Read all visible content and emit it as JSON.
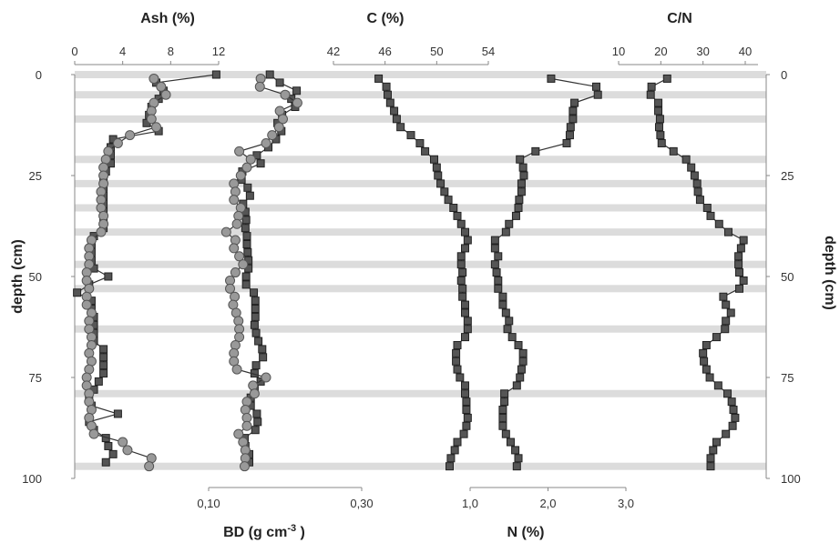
{
  "chart_data": {
    "type": "scatter",
    "depth_axis": {
      "label": "depth (cm)",
      "range": [
        0,
        100
      ],
      "ticks": [
        "0",
        "25",
        "50",
        "75",
        "100"
      ],
      "inverted": true,
      "band_depths": [
        0,
        5,
        11,
        21,
        27,
        33,
        39,
        47,
        53,
        63,
        79,
        97
      ]
    },
    "axes": [
      {
        "id": "ash",
        "title": "Ash  (%)",
        "position": "top",
        "ticks": [
          "0",
          "4",
          "8",
          "12"
        ],
        "range": [
          0,
          12
        ]
      },
      {
        "id": "bd",
        "title": "BD (g cm",
        "title_sup": "-3",
        "title_end": " )",
        "position": "bottom",
        "ticks": [
          "0,10",
          "0,30"
        ],
        "range": [
          0.1,
          0.3
        ]
      },
      {
        "id": "c",
        "title": "C  (%)",
        "position": "top",
        "ticks": [
          "42",
          "46",
          "50",
          "54"
        ],
        "range": [
          42,
          54
        ]
      },
      {
        "id": "n",
        "title": "N  (%)",
        "position": "bottom",
        "ticks": [
          "1,0",
          "2,0",
          "3,0"
        ],
        "range": [
          1.0,
          3.0
        ]
      },
      {
        "id": "cn",
        "title": "C/N",
        "position": "top",
        "ticks": [
          "10",
          "20",
          "30",
          "40"
        ],
        "range": [
          10,
          40
        ]
      }
    ],
    "series": [
      {
        "axis": "ash",
        "marker": "square",
        "color": "#555555",
        "depth": [
          0,
          2,
          4,
          6,
          8,
          10,
          12,
          14,
          16,
          18,
          20,
          22,
          24,
          26,
          28,
          30,
          32,
          34,
          36,
          38,
          40,
          42,
          44,
          46,
          48,
          50,
          52,
          54,
          56,
          58,
          60,
          62,
          64,
          66,
          68,
          70,
          72,
          74,
          76,
          78,
          80,
          82,
          84,
          86,
          88,
          90,
          92,
          94,
          96
        ],
        "values": [
          11.8,
          6.8,
          7.4,
          7.0,
          6.4,
          6.2,
          6.0,
          7.0,
          3.2,
          3.0,
          3.0,
          3.0,
          2.6,
          2.4,
          2.4,
          2.4,
          2.4,
          2.4,
          2.4,
          2.4,
          1.6,
          1.4,
          1.4,
          1.4,
          1.6,
          2.8,
          1.2,
          0.2,
          1.4,
          1.4,
          1.6,
          1.6,
          1.6,
          1.6,
          2.4,
          2.4,
          2.4,
          2.4,
          2.0,
          1.6,
          1.2,
          1.4,
          3.6,
          1.2,
          1.6,
          2.6,
          2.8,
          3.2,
          2.6
        ]
      },
      {
        "axis": "ash",
        "marker": "circle",
        "color": "#999999",
        "depth": [
          1,
          3,
          5,
          7,
          9,
          11,
          13,
          15,
          17,
          19,
          21,
          23,
          25,
          27,
          29,
          31,
          33,
          35,
          37,
          39,
          41,
          43,
          45,
          47,
          49,
          51,
          53,
          55,
          57,
          59,
          61,
          63,
          65,
          67,
          69,
          71,
          73,
          75,
          77,
          79,
          81,
          83,
          85,
          87,
          89,
          91,
          93,
          95,
          97
        ],
        "values": [
          6.6,
          7.2,
          7.6,
          6.6,
          6.4,
          6.4,
          6.8,
          4.6,
          3.6,
          2.8,
          2.6,
          2.4,
          2.4,
          2.4,
          2.2,
          2.2,
          2.2,
          2.4,
          2.4,
          2.2,
          1.4,
          1.2,
          1.2,
          1.2,
          1.0,
          1.0,
          1.2,
          1.0,
          1.0,
          1.4,
          1.2,
          1.2,
          1.4,
          1.4,
          1.2,
          1.4,
          1.2,
          1.0,
          1.0,
          1.2,
          1.2,
          1.4,
          1.2,
          1.4,
          1.6,
          4.0,
          4.4,
          6.4,
          6.2
        ]
      },
      {
        "axis": "bd",
        "marker": "square",
        "color": "#555555",
        "depth": [
          0,
          2,
          4,
          6,
          8,
          10,
          12,
          14,
          16,
          18,
          20,
          22,
          24,
          26,
          28,
          30,
          32,
          34,
          36,
          38,
          40,
          42,
          44,
          46,
          48,
          50,
          52,
          54,
          56,
          58,
          60,
          62,
          64,
          66,
          68,
          70,
          72,
          74,
          76,
          78,
          80,
          82,
          84,
          86,
          88,
          90,
          92,
          94,
          96
        ],
        "values": [
          0.18,
          0.193,
          0.215,
          0.208,
          0.213,
          0.196,
          0.19,
          0.195,
          0.188,
          0.178,
          0.163,
          0.168,
          0.144,
          0.143,
          0.151,
          0.154,
          0.145,
          0.148,
          0.149,
          0.148,
          0.15,
          0.15,
          0.151,
          0.152,
          0.152,
          0.149,
          0.149,
          0.159,
          0.161,
          0.161,
          0.161,
          0.16,
          0.162,
          0.165,
          0.17,
          0.171,
          0.162,
          0.16,
          0.168,
          0.16,
          0.155,
          0.155,
          0.163,
          0.164,
          0.161,
          0.147,
          0.148,
          0.153,
          0.153
        ]
      },
      {
        "axis": "bd",
        "marker": "circle",
        "color": "#999999",
        "depth": [
          1,
          3,
          5,
          7,
          9,
          11,
          13,
          15,
          17,
          19,
          21,
          23,
          25,
          27,
          29,
          31,
          33,
          35,
          37,
          39,
          41,
          43,
          45,
          47,
          49,
          51,
          53,
          55,
          57,
          59,
          61,
          63,
          65,
          67,
          69,
          71,
          73,
          75,
          77,
          79,
          81,
          83,
          85,
          87,
          89,
          91,
          93,
          95,
          97
        ],
        "values": [
          0.168,
          0.167,
          0.2,
          0.216,
          0.193,
          0.197,
          0.192,
          0.183,
          0.175,
          0.14,
          0.155,
          0.15,
          0.142,
          0.133,
          0.135,
          0.133,
          0.142,
          0.139,
          0.137,
          0.123,
          0.135,
          0.133,
          0.14,
          0.145,
          0.135,
          0.128,
          0.128,
          0.134,
          0.132,
          0.136,
          0.139,
          0.14,
          0.14,
          0.135,
          0.133,
          0.133,
          0.137,
          0.175,
          0.158,
          0.16,
          0.15,
          0.148,
          0.15,
          0.15,
          0.139,
          0.145,
          0.148,
          0.148,
          0.147
        ]
      },
      {
        "axis": "c",
        "marker": "square",
        "color": "#555555",
        "depth": [
          1,
          3,
          5,
          7,
          9,
          11,
          13,
          15,
          17,
          19,
          21,
          23,
          25,
          27,
          29,
          31,
          33,
          35,
          37,
          39,
          41,
          43,
          45,
          47,
          49,
          51,
          53,
          55,
          57,
          59,
          61,
          63,
          65,
          67,
          69,
          71,
          73,
          75,
          77,
          79,
          81,
          83,
          85,
          87,
          89,
          91,
          93,
          95,
          97
        ],
        "values": [
          45.5,
          46.1,
          46.2,
          46.4,
          46.7,
          46.9,
          47.2,
          48.0,
          48.7,
          49.1,
          49.8,
          50.0,
          50.1,
          50.3,
          50.6,
          50.9,
          51.3,
          51.6,
          51.9,
          52.2,
          52.4,
          52.2,
          51.9,
          51.9,
          52.0,
          51.9,
          52.0,
          52.0,
          52.2,
          52.2,
          52.4,
          52.4,
          52.2,
          51.6,
          51.5,
          51.5,
          51.6,
          51.8,
          52.2,
          52.2,
          52.3,
          52.3,
          52.4,
          52.3,
          52.1,
          51.6,
          51.4,
          51.1,
          51.0
        ]
      },
      {
        "axis": "n",
        "marker": "square",
        "color": "#555555",
        "depth": [
          1,
          3,
          5,
          7,
          9,
          11,
          13,
          15,
          17,
          19,
          21,
          23,
          25,
          27,
          29,
          31,
          33,
          35,
          37,
          39,
          41,
          43,
          45,
          47,
          49,
          51,
          53,
          55,
          57,
          59,
          61,
          63,
          65,
          67,
          69,
          71,
          73,
          75,
          77,
          79,
          81,
          83,
          85,
          87,
          89,
          91,
          93,
          95,
          97
        ],
        "values": [
          2.04,
          2.62,
          2.64,
          2.34,
          2.32,
          2.32,
          2.29,
          2.28,
          2.24,
          1.84,
          1.64,
          1.68,
          1.69,
          1.66,
          1.66,
          1.63,
          1.62,
          1.59,
          1.5,
          1.46,
          1.32,
          1.32,
          1.36,
          1.32,
          1.34,
          1.36,
          1.36,
          1.42,
          1.42,
          1.46,
          1.5,
          1.48,
          1.54,
          1.62,
          1.68,
          1.68,
          1.66,
          1.64,
          1.6,
          1.44,
          1.44,
          1.42,
          1.42,
          1.42,
          1.46,
          1.52,
          1.58,
          1.62,
          1.6
        ]
      },
      {
        "axis": "cn",
        "marker": "square",
        "color": "#555555",
        "depth": [
          1,
          3,
          5,
          7,
          9,
          11,
          13,
          15,
          17,
          19,
          21,
          23,
          25,
          27,
          29,
          31,
          33,
          35,
          37,
          39,
          41,
          43,
          45,
          47,
          49,
          51,
          53,
          55,
          57,
          59,
          61,
          63,
          65,
          67,
          69,
          71,
          73,
          75,
          77,
          79,
          81,
          83,
          85,
          87,
          89,
          91,
          93,
          95,
          97
        ],
        "values": [
          21.5,
          17.8,
          17.6,
          19.4,
          19.4,
          19.8,
          19.6,
          19.9,
          20.2,
          23.0,
          26.0,
          27.2,
          28.0,
          28.6,
          28.8,
          29.3,
          31.0,
          31.8,
          33.8,
          36.0,
          39.6,
          39.0,
          38.4,
          38.4,
          38.6,
          39.6,
          38.6,
          34.8,
          35.4,
          36.6,
          35.4,
          35.2,
          33.2,
          30.8,
          30.0,
          30.2,
          30.8,
          31.6,
          33.6,
          35.8,
          36.8,
          37.2,
          37.6,
          37.0,
          35.4,
          33.2,
          32.4,
          31.8,
          31.8
        ]
      }
    ]
  }
}
